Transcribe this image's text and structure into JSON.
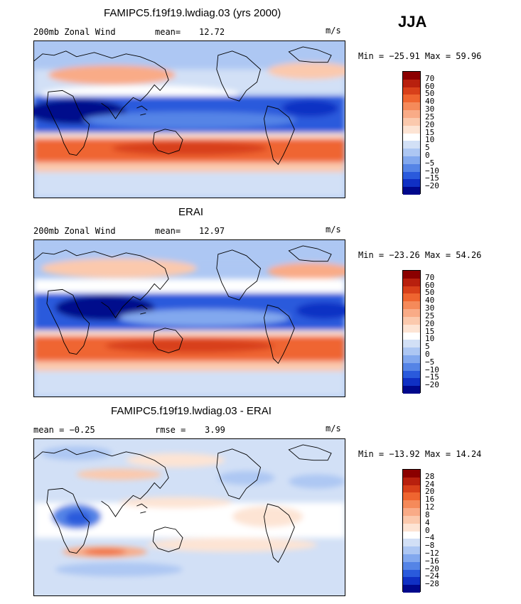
{
  "season": "JJA",
  "panels": [
    {
      "title": "FAMIPC5.f19f19.lwdiag.03 (yrs 2000)",
      "left_label": "200mb Zonal Wind",
      "stat_label": "mean=",
      "stat_value": "12.72",
      "units": "m/s",
      "minmax": "Min = −25.91 Max =  59.96",
      "type": "field_model"
    },
    {
      "title": "ERAI",
      "left_label": "200mb Zonal Wind",
      "stat_label": "mean=",
      "stat_value": "12.97",
      "units": "m/s",
      "minmax": "Min = −23.26 Max =  54.26",
      "type": "field_obs"
    },
    {
      "title": "FAMIPC5.f19f19.lwdiag.03 - ERAI",
      "left_label": "mean =  −0.25",
      "stat_label": "rmse =",
      "stat_value": "3.99",
      "units": "m/s",
      "minmax": "Min = −13.92 Max =  14.24",
      "type": "diff"
    }
  ],
  "colorbar_field": {
    "labels": [
      "70",
      "60",
      "50",
      "40",
      "30",
      "25",
      "20",
      "15",
      "10",
      "5",
      "0",
      "−5",
      "−10",
      "−15",
      "−20"
    ],
    "colors": [
      "#8b0000",
      "#b8200e",
      "#d8401a",
      "#ef6530",
      "#f58a5a",
      "#f9ab87",
      "#fbc9ad",
      "#fde4d4",
      "#ffffff",
      "#d2e0f6",
      "#adc7f3",
      "#82a8ee",
      "#5584e6",
      "#2a5adc",
      "#1030c4",
      "#00088c"
    ]
  },
  "colorbar_diff": {
    "labels": [
      "28",
      "24",
      "20",
      "16",
      "12",
      "8",
      "4",
      "0",
      "−4",
      "−8",
      "−12",
      "−16",
      "−20",
      "−24",
      "−28"
    ],
    "colors": [
      "#8b0000",
      "#b8200e",
      "#d8401a",
      "#ef6530",
      "#f58a5a",
      "#f9ab87",
      "#fbc9ad",
      "#fde4d4",
      "#ffffff",
      "#d2e0f6",
      "#adc7f3",
      "#82a8ee",
      "#5584e6",
      "#2a5adc",
      "#1030c4",
      "#00088c"
    ]
  }
}
